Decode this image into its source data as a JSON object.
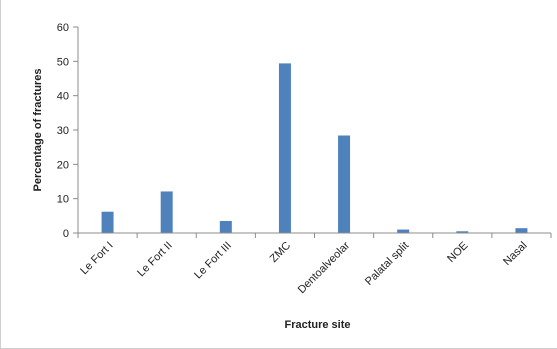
{
  "chart_data": {
    "type": "bar",
    "title": "",
    "xlabel": "Fracture site",
    "ylabel": "Percentage of fractures",
    "categories": [
      "Le Fort I",
      "Le Fort II",
      "Le Fort III",
      "ZMC",
      "Dentoalveolar",
      "Palatal split",
      "NOE",
      "Nasal"
    ],
    "values": [
      6.2,
      12.1,
      3.5,
      49.4,
      28.4,
      1.0,
      0.5,
      1.4
    ],
    "ylim": [
      0,
      60
    ],
    "yticks": [
      0,
      10,
      20,
      30,
      40,
      50,
      60
    ],
    "grid": false,
    "legend": "none",
    "bar_color": "#4f81bd",
    "axis_color": "#8c8c8c"
  }
}
